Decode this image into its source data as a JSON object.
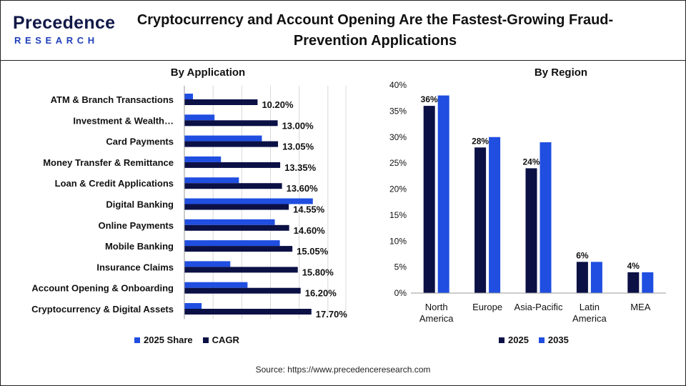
{
  "header": {
    "logo_top": "Precedence",
    "logo_bottom": "RESEARCH",
    "title_line1": "Cryptocurrency and Account Opening Are the Fastest-Growing Fraud-",
    "title_line2": "Prevention Applications"
  },
  "chart_data": [
    {
      "type": "bar",
      "orientation": "horizontal",
      "title": "By Application",
      "categories": [
        "ATM & Branch Transactions",
        "Investment & Wealth…",
        "Card Payments",
        "Money Transfer & Remittance",
        "Loan & Credit Applications",
        "Digital Banking",
        "Online Payments",
        "Mobile Banking",
        "Insurance Claims",
        "Account Opening & Onboarding",
        "Cryptocurrency & Digital Assets"
      ],
      "series": [
        {
          "name": "2025 Share",
          "color": "#1f4ee0",
          "values": [
            1.2,
            4.2,
            10.8,
            5.1,
            7.6,
            17.9,
            12.6,
            13.3,
            6.4,
            8.8,
            2.4
          ]
        },
        {
          "name": "CAGR",
          "color": "#0b1045",
          "values": [
            10.2,
            13.0,
            13.05,
            13.35,
            13.6,
            14.55,
            14.6,
            15.05,
            15.8,
            16.2,
            17.7
          ]
        }
      ],
      "data_labels": [
        "10.20%",
        "13.00%",
        "13.05%",
        "13.35%",
        "13.60%",
        "14.55%",
        "14.60%",
        "15.05%",
        "15.80%",
        "16.20%",
        "17.70%"
      ],
      "xlim": [
        0,
        22.5
      ],
      "grid": true,
      "legend": "bottom"
    },
    {
      "type": "bar",
      "title": "By Region",
      "categories": [
        "North America",
        "Europe",
        "Asia-Pacific",
        "Latin America",
        "MEA"
      ],
      "category_lines": [
        [
          "North",
          "America"
        ],
        [
          "Europe"
        ],
        [
          "Asia-Pacific"
        ],
        [
          "Latin",
          "America"
        ],
        [
          "MEA"
        ]
      ],
      "series": [
        {
          "name": "2025",
          "color": "#0b1045",
          "values": [
            36,
            28,
            24,
            6,
            4
          ]
        },
        {
          "name": "2035",
          "color": "#1f4ee0",
          "values": [
            38,
            30,
            29,
            6,
            4
          ]
        }
      ],
      "data_labels": [
        "36%",
        "28%",
        "24%",
        "6%",
        "4%"
      ],
      "ylim": [
        0,
        40
      ],
      "yticks": [
        "0%",
        "5%",
        "10%",
        "15%",
        "20%",
        "25%",
        "30%",
        "35%",
        "40%"
      ],
      "grid": false,
      "legend": "bottom"
    }
  ],
  "source": "Source: https://www.precedenceresearch.com"
}
